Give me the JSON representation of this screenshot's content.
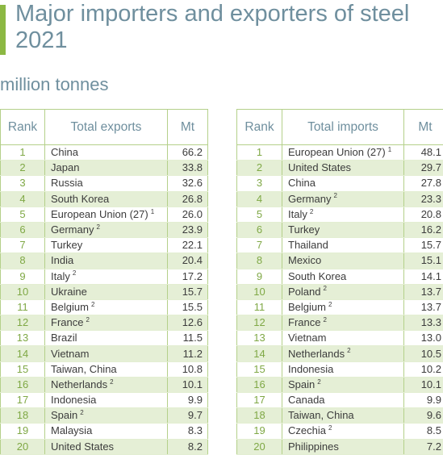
{
  "title": "Major importers and exporters of steel 2021",
  "subtitle": "million tonnes",
  "colors": {
    "accent": "#8cb843",
    "heading": "#6f8f9e",
    "rank": "#7fa845",
    "stripe": "#e5efd6"
  },
  "exports": {
    "headers": {
      "rank": "Rank",
      "name": "Total exports",
      "value": "Mt"
    },
    "rows": [
      {
        "rank": "1",
        "name": "China",
        "fn": "",
        "value": "66.2"
      },
      {
        "rank": "2",
        "name": "Japan",
        "fn": "",
        "value": "33.8"
      },
      {
        "rank": "3",
        "name": "Russia",
        "fn": "",
        "value": "32.6"
      },
      {
        "rank": "4",
        "name": "South Korea",
        "fn": "",
        "value": "26.8"
      },
      {
        "rank": "5",
        "name": "European Union (27)",
        "fn": "1",
        "value": "26.0"
      },
      {
        "rank": "6",
        "name": "Germany",
        "fn": "2",
        "value": "23.9"
      },
      {
        "rank": "7",
        "name": "Turkey",
        "fn": "",
        "value": "22.1"
      },
      {
        "rank": "8",
        "name": "India",
        "fn": "",
        "value": "20.4"
      },
      {
        "rank": "9",
        "name": "Italy",
        "fn": "2",
        "value": "17.2"
      },
      {
        "rank": "10",
        "name": "Ukraine",
        "fn": "",
        "value": "15.7"
      },
      {
        "rank": "11",
        "name": "Belgium",
        "fn": "2",
        "value": "15.5"
      },
      {
        "rank": "12",
        "name": "France",
        "fn": "2",
        "value": "12.6"
      },
      {
        "rank": "13",
        "name": "Brazil",
        "fn": "",
        "value": "11.5"
      },
      {
        "rank": "14",
        "name": "Vietnam",
        "fn": "",
        "value": "11.2"
      },
      {
        "rank": "15",
        "name": "Taiwan, China",
        "fn": "",
        "value": "10.8"
      },
      {
        "rank": "16",
        "name": "Netherlands",
        "fn": "2",
        "value": "10.1"
      },
      {
        "rank": "17",
        "name": "Indonesia",
        "fn": "",
        "value": "9.9"
      },
      {
        "rank": "18",
        "name": "Spain",
        "fn": "2",
        "value": "9.7"
      },
      {
        "rank": "19",
        "name": "Malaysia",
        "fn": "",
        "value": "8.3"
      },
      {
        "rank": "20",
        "name": "United States",
        "fn": "",
        "value": "8.2"
      }
    ]
  },
  "imports": {
    "headers": {
      "rank": "Rank",
      "name": "Total imports",
      "value": "Mt"
    },
    "rows": [
      {
        "rank": "1",
        "name": "European Union (27)",
        "fn": "1",
        "value": "48.1"
      },
      {
        "rank": "2",
        "name": "United States",
        "fn": "",
        "value": "29.7"
      },
      {
        "rank": "3",
        "name": "China",
        "fn": "",
        "value": "27.8"
      },
      {
        "rank": "4",
        "name": "Germany",
        "fn": "2",
        "value": "23.3"
      },
      {
        "rank": "5",
        "name": "Italy",
        "fn": "2",
        "value": "20.8"
      },
      {
        "rank": "6",
        "name": "Turkey",
        "fn": "",
        "value": "16.2"
      },
      {
        "rank": "7",
        "name": "Thailand",
        "fn": "",
        "value": "15.7"
      },
      {
        "rank": "8",
        "name": "Mexico",
        "fn": "",
        "value": "15.1"
      },
      {
        "rank": "9",
        "name": "South Korea",
        "fn": "",
        "value": "14.1"
      },
      {
        "rank": "10",
        "name": "Poland",
        "fn": "2",
        "value": "13.7"
      },
      {
        "rank": "11",
        "name": "Belgium",
        "fn": "2",
        "value": "13.7"
      },
      {
        "rank": "12",
        "name": "France",
        "fn": "2",
        "value": "13.3"
      },
      {
        "rank": "13",
        "name": "Vietnam",
        "fn": "",
        "value": "13.0"
      },
      {
        "rank": "14",
        "name": "Netherlands",
        "fn": "2",
        "value": "10.5"
      },
      {
        "rank": "15",
        "name": "Indonesia",
        "fn": "",
        "value": "10.2"
      },
      {
        "rank": "16",
        "name": "Spain",
        "fn": "2",
        "value": "10.1"
      },
      {
        "rank": "17",
        "name": "Canada",
        "fn": "",
        "value": "9.9"
      },
      {
        "rank": "18",
        "name": "Taiwan, China",
        "fn": "",
        "value": "9.6"
      },
      {
        "rank": "19",
        "name": "Czechia",
        "fn": "2",
        "value": "8.5"
      },
      {
        "rank": "20",
        "name": "Philippines",
        "fn": "",
        "value": "7.2"
      }
    ]
  }
}
